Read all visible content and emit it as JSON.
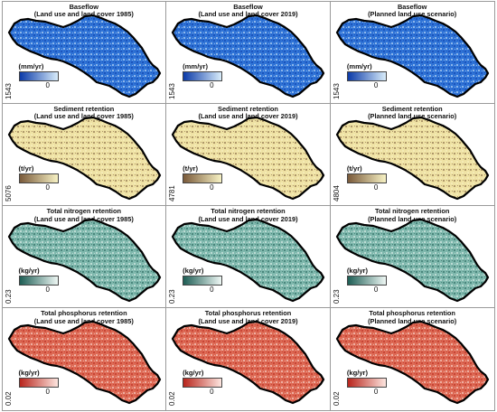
{
  "rows": [
    {
      "title": "Baseflow",
      "unit": "(mm/yr)",
      "colors": {
        "dark": "#0b3aa8",
        "light": "#d8ecfa",
        "mid": "#2f73d6"
      },
      "panels": [
        {
          "subtitle": "(Land use and land cover 1985)",
          "max": "1543",
          "min": "0"
        },
        {
          "subtitle": "(Land use and land cover 2019)",
          "max": "1543",
          "min": "0"
        },
        {
          "subtitle": "(Planned land use scenario)",
          "max": "1543",
          "min": "0"
        }
      ]
    },
    {
      "title": "Sediment retention",
      "unit": "(t/yr)",
      "colors": {
        "dark": "#7a5a3a",
        "light": "#f7f2c4",
        "mid": "#efe2a4"
      },
      "panels": [
        {
          "subtitle": "(Land use and land cover 1985)",
          "max": "5076",
          "min": "0"
        },
        {
          "subtitle": "(Land use and land cover 2019)",
          "max": "4781",
          "min": "0"
        },
        {
          "subtitle": "(Planned land use scenario)",
          "max": "4804",
          "min": "0"
        }
      ]
    },
    {
      "title": "Total nitrogen retention",
      "unit": "(kg/yr)",
      "colors": {
        "dark": "#1e5e55",
        "light": "#eef7f4",
        "mid": "#7fb8ad"
      },
      "panels": [
        {
          "subtitle": "(Land use and land cover 1985)",
          "max": "0.23",
          "min": "0"
        },
        {
          "subtitle": "(Land use and land cover 2019)",
          "max": "0.23",
          "min": "0"
        },
        {
          "subtitle": "(Planned land use scenario)",
          "max": "0.23",
          "min": "0"
        }
      ]
    },
    {
      "title": "Total phosphorus retention",
      "unit": "(kg/yr)",
      "colors": {
        "dark": "#b8251c",
        "light": "#fde5df",
        "mid": "#dd6a55"
      },
      "panels": [
        {
          "subtitle": "(Land use and land cover 1985)",
          "max": "0.02",
          "min": "0"
        },
        {
          "subtitle": "(Land use and land cover 2019)",
          "max": "0.02",
          "min": "0"
        },
        {
          "subtitle": "(Planned land use scenario)",
          "max": "0.02",
          "min": "0"
        }
      ]
    }
  ]
}
